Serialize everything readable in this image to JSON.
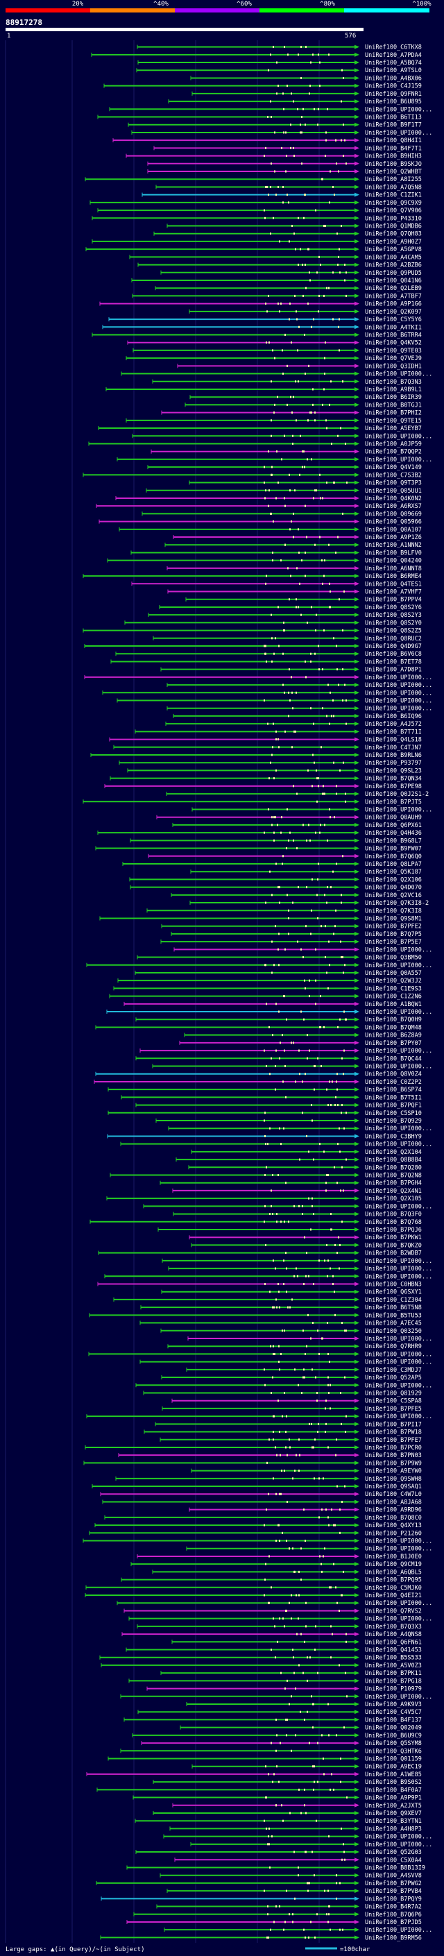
{
  "chart_data": {
    "type": "alignment-map",
    "title": "",
    "query_id": "88917278",
    "query_length": 576,
    "scale_start": 1,
    "scale_end": 576,
    "identity_legend": {
      "ticks": [
        "20%",
        "^40%",
        "^60%",
        "^80%",
        "^100%"
      ],
      "colors": [
        "#ff0000",
        "#ff8000",
        "#a000ff",
        "#00ff00",
        "#00ffff"
      ]
    },
    "series_colors": {
      "green": "#22cc22",
      "magenta": "#cc22cc",
      "cyan": "#22bbdd",
      "insert": "#ffffaa"
    },
    "footer": {
      "gap_legend": "Large gaps: ▲(in Query)/~(in Subject)",
      "scale_legend": "=100char"
    },
    "hits": [
      "UniRef100_C6TKX8",
      "UniRef100_A7PDA4",
      "UniRef100_A5BQ74",
      "UniRef100_A9TSL0",
      "UniRef100_A4BX06",
      "UniRef100_C4J159",
      "UniRef100_Q9FNR1",
      "UniRef100_B6U895",
      "UniRef100_UPI000...",
      "UniRef100_B6TI13",
      "UniRef100_B9F1T7",
      "UniRef100_UPI000...",
      "UniRef100_Q8H4I1",
      "UniRef100_B4F7T1",
      "UniRef100_B9HIH3",
      "UniRef100_B9SKJO",
      "UniRef100_Q2WHBT",
      "UniRef100_A8I255",
      "UniRef100_A7Q5N8",
      "UniRef100_C1ZIK1",
      "UniRef100_Q9C9X9",
      "UniRef100_Q7V906",
      "UniRef100_P43310",
      "UniRef100_Q1MDB6",
      "UniRef100_Q7QH83",
      "UniRef100_A9H0Z7",
      "UniRef100_A5GPV8",
      "UniRef100_A4CAM5",
      "UniRef100_A2BZB6",
      "UniRef100_Q9PUD5",
      "UniRef100_Q041N6",
      "UniRef100_Q2LEB9",
      "UniRef100_A7TBF7",
      "UniRef100_A9P1G6",
      "UniRef100_Q2K097",
      "UniRef100_C5Y5Y6",
      "UniRef100_A4TKI1",
      "UniRef100_B6TRR4",
      "UniRef100_Q4KV52",
      "UniRef100_Q9TE03",
      "UniRef100_Q7VEJ9",
      "UniRef100_Q3IDH1",
      "UniRef100_UPI000...",
      "UniRef100_B7Q3N3",
      "UniRef100_A9B9L1",
      "UniRef100_B6IR39",
      "UniRef100_B0TGJ1",
      "UniRef100_B7PHI2",
      "UniRef100_Q9TE15",
      "UniRef100_A5EYB7",
      "UniRef100_UPI000...",
      "UniRef100_A0JP59",
      "UniRef100_B7QQP2",
      "UniRef100_UPI000...",
      "UniRef100_Q4V149",
      "UniRef100_C7S3B2",
      "UniRef100_Q9T3P3",
      "UniRef100_Q05UU1",
      "UniRef100_Q4K0N2",
      "UniRef100_A6RXS7",
      "UniRef100_Q09669",
      "UniRef100_Q05966",
      "UniRef100_Q0A107",
      "UniRef100_A9P1Z6",
      "UniRef100_A1NNN2",
      "UniRef100_B9LFV0",
      "UniRef100_Q04240",
      "UniRef100_A6NNT8",
      "UniRef100_B6RME4",
      "UniRef100_Q4TES1",
      "UniRef100_A7VHF7",
      "UniRef100_B7PPV4",
      "UniRef100_Q8S2Y6",
      "UniRef100_Q8S2Y3",
      "UniRef100_Q8S2Y0",
      "UniRef100_Q8S2Z5",
      "UniRef100_Q8RUC2",
      "UniRef100_Q4D9G7",
      "UniRef100_B6V6C8",
      "UniRef100_B7ET78",
      "UniRef100_A7D8P1",
      "UniRef100_UPI000...",
      "UniRef100_UPI000...",
      "UniRef100_UPI000...",
      "UniRef100_UPI000...",
      "UniRef100_UPI000...",
      "UniRef100_B6IQ96",
      "UniRef100_A4J572",
      "UniRef100_B7T71I",
      "UniRef100_Q4LS18",
      "UniRef100_C4TJN7",
      "UniRef100_B9RLN6",
      "UniRef100_P93797",
      "UniRef100_Q9SL23",
      "UniRef100_B7QN34",
      "UniRef100_B7PE98",
      "UniRef100_Q0J2S1-2",
      "UniRef100_B7PJT5",
      "UniRef100_UPI000...",
      "UniRef100_Q0AUH9",
      "UniRef100_Q6PX61",
      "UniRef100_Q4H436",
      "UniRef100_B9G8L7",
      "UniRef100_B9FW07",
      "UniRef100_B7Q6Q0",
      "UniRef100_Q8LPA7",
      "UniRef100_Q5K187",
      "UniRef100_Q2X106",
      "UniRef100_Q4D070",
      "UniRef100_Q2VC16",
      "UniRef100_Q7K3I8-2",
      "UniRef100_Q7K3I8",
      "UniRef100_Q9S8M1",
      "UniRef100_B7PFE2",
      "UniRef100_B7Q7P5",
      "UniRef100_B7P5E7",
      "UniRef100_UPI000...",
      "UniRef100_Q3BM50",
      "UniRef100_UPI000...",
      "UniRef100_Q0A557",
      "UniRef100_Q2W3J2",
      "UniRef100_C1E9S3",
      "UniRef100_C1Z2N6",
      "UniRef100_A1BQW1",
      "UniRef100_UPI000...",
      "UniRef100_B7Q0H9",
      "UniRef100_B7QM48",
      "UniRef100_B6Z8A9",
      "UniRef100_B7PY07",
      "UniRef100_UPI000...",
      "UniRef100_B7QC44",
      "UniRef100_UPI000...",
      "UniRef100_Q8V0Z4",
      "UniRef100_C0Z2P2",
      "UniRef100_B6SP74",
      "UniRef100_B7T5I1",
      "UniRef100_B7PQF1",
      "UniRef100_C5SP10",
      "UniRef100_B7Q929",
      "UniRef100_UPI000...",
      "UniRef100_C3BHY9",
      "UniRef100_UPI000...",
      "UniRef100_Q2X104",
      "UniRef100_Q8B8B4",
      "UniRef100_B7Q280",
      "UniRef100_B7Q2N8",
      "UniRef100_B7PGH4",
      "UniRef100_Q2X4N1",
      "UniRef100_Q2X105",
      "UniRef100_UPI000...",
      "UniRef100_B7Q3F0",
      "UniRef100_B7Q768",
      "UniRef100_B7PQJ6",
      "UniRef100_B7PKW1",
      "UniRef100_B7QKZ0",
      "UniRef100_B2WDB7",
      "UniRef100_UPI000...",
      "UniRef100_UPI000...",
      "UniRef100_UPI000...",
      "UniRef100_C0HBN3",
      "UniRef100_Q6SXY1",
      "UniRef100_C1Z304",
      "UniRef100_B6T5N8",
      "UniRef100_B5TU53",
      "UniRef100_A7EC45",
      "UniRef100_Q03250",
      "UniRef100_UPI000...",
      "UniRef100_Q7RHR9",
      "UniRef100_UPI000...",
      "UniRef100_UPI000...",
      "UniRef100_C3MDJ7",
      "UniRef100_Q52AP5",
      "UniRef100_UPI000...",
      "UniRef100_Q81929",
      "UniRef100_C5SPA8",
      "UniRef100_B7PFE5",
      "UniRef100_UPI000...",
      "UniRef100_B7PI17",
      "UniRef100_B7PW18",
      "UniRef100_B7PFE7",
      "UniRef100_B7PCR0",
      "UniRef100_B7PN03",
      "UniRef100_B7P9W9",
      "UniRef100_A9EYW0",
      "UniRef100_Q9SWH8",
      "UniRef100_Q9SAQ1",
      "UniRef100_C4W7L0",
      "UniRef100_A8JA68",
      "UniRef100_A9RD96",
      "UniRef100_B7Q8C0",
      "UniRef100_Q4XY13",
      "UniRef100_P21260",
      "UniRef100_UPI000...",
      "UniRef100_UPI000...",
      "UniRef100_B1J0E0",
      "UniRef100_Q9CM19",
      "UniRef100_A6QBL5",
      "UniRef100_B7PQ95",
      "UniRef100_C5MJK0",
      "UniRef100_Q4EI21",
      "UniRef100_UPI000...",
      "UniRef100_Q7RVS2",
      "UniRef100_UPI000...",
      "UniRef100_B7Q3X3",
      "UniRef100_A4QNS8",
      "UniRef100_Q6FN61",
      "UniRef100_Q41453",
      "UniRef100_B5S533",
      "UniRef100_A5V0Z3",
      "UniRef100_B7PK11",
      "UniRef100_B7PG18",
      "UniRef100_P10979",
      "UniRef100_UPI000...",
      "UniRef100_A9K9V3",
      "UniRef100_C4V5C7",
      "UniRef100_B4F137",
      "UniRef100_Q02049",
      "UniRef100_B6U9C9",
      "UniRef100_Q5SYM8",
      "UniRef100_Q3HTK6",
      "UniRef100_Q01159",
      "UniRef100_A9EC19",
      "UniRef100_A1WE85",
      "UniRef100_B9S0S2",
      "UniRef100_B4F0A7",
      "UniRef100_A9P9P1",
      "UniRef100_A2JXT5",
      "UniRef100_Q9XEV7",
      "UniRef100_B3YTN1",
      "UniRef100_A4H8P3",
      "UniRef100_UPI000...",
      "UniRef100_UPI000...",
      "UniRef100_Q52G03",
      "UniRef100_C5X0A4",
      "UniRef100_B8B13I9",
      "UniRef100_A4SVV8",
      "UniRef100_B7PWG2",
      "UniRef100_B7PVB4",
      "UniRef100_B7PQY9",
      "UniRef100_B4R7A2",
      "UniRef100_B7Q6P6",
      "UniRef100_B7PJD5",
      "UniRef100_UPI000...",
      "UniRef100_B9RM56"
    ]
  }
}
